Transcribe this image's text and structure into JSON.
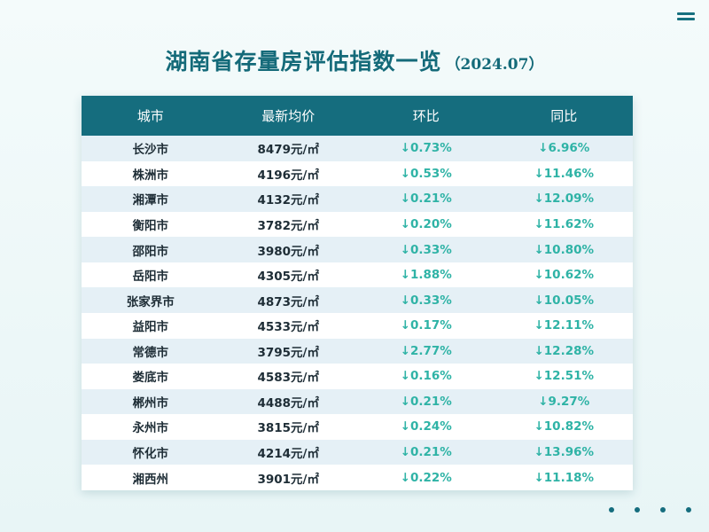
{
  "title": {
    "main": "湖南省存量房评估指数一览",
    "date": "（2024.07）"
  },
  "table": {
    "headers": [
      "城市",
      "最新均价",
      "环比",
      "同比"
    ],
    "rows": [
      {
        "city": "长沙市",
        "price": "8479元/㎡",
        "mom": "↓0.73%",
        "yoy": "↓6.96%"
      },
      {
        "city": "株洲市",
        "price": "4196元/㎡",
        "mom": "↓0.53%",
        "yoy": "↓11.46%"
      },
      {
        "city": "湘潭市",
        "price": "4132元/㎡",
        "mom": "↓0.21%",
        "yoy": "↓12.09%"
      },
      {
        "city": "衡阳市",
        "price": "3782元/㎡",
        "mom": "↓0.20%",
        "yoy": "↓11.62%"
      },
      {
        "city": "邵阳市",
        "price": "3980元/㎡",
        "mom": "↓0.33%",
        "yoy": "↓10.80%"
      },
      {
        "city": "岳阳市",
        "price": "4305元/㎡",
        "mom": "↓1.88%",
        "yoy": "↓10.62%"
      },
      {
        "city": "张家界市",
        "price": "4873元/㎡",
        "mom": "↓0.33%",
        "yoy": "↓10.05%"
      },
      {
        "city": "益阳市",
        "price": "4533元/㎡",
        "mom": "↓0.17%",
        "yoy": "↓12.11%"
      },
      {
        "city": "常德市",
        "price": "3795元/㎡",
        "mom": "↓2.77%",
        "yoy": "↓12.28%"
      },
      {
        "city": "娄底市",
        "price": "4583元/㎡",
        "mom": "↓0.16%",
        "yoy": "↓12.51%"
      },
      {
        "city": "郴州市",
        "price": "4488元/㎡",
        "mom": "↓0.21%",
        "yoy": "↓9.27%"
      },
      {
        "city": "永州市",
        "price": "3815元/㎡",
        "mom": "↓0.24%",
        "yoy": "↓10.82%"
      },
      {
        "city": "怀化市",
        "price": "4214元/㎡",
        "mom": "↓0.21%",
        "yoy": "↓13.96%"
      },
      {
        "city": "湘西州",
        "price": "3901元/㎡",
        "mom": "↓0.22%",
        "yoy": "↓11.18%"
      }
    ]
  },
  "icons": {
    "menu": "menu-icon",
    "pagination": "pagination-dots"
  },
  "colors": {
    "accent": "#156d7e",
    "decrease": "#2fb3a6"
  }
}
